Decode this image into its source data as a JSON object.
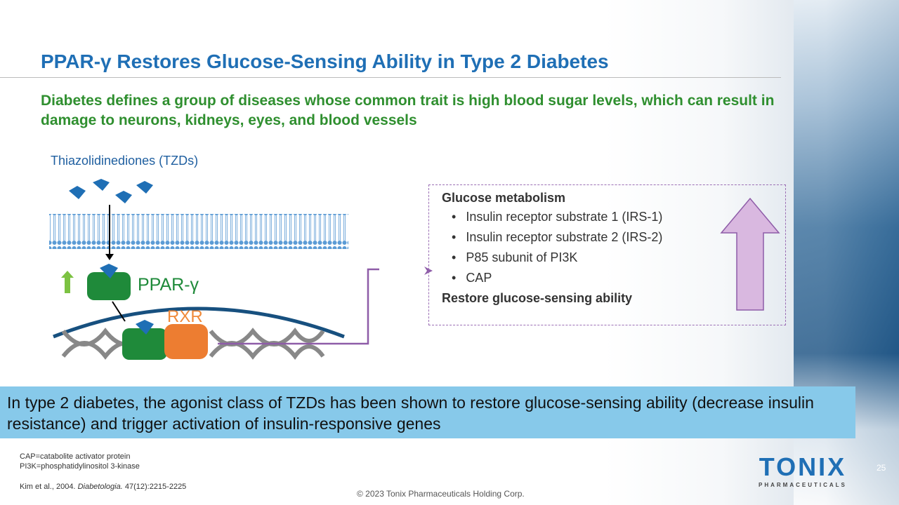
{
  "title": "PPAR-γ Restores Glucose-Sensing Ability in Type 2 Diabetes",
  "subtitle": "Diabetes defines a group of diseases whose common trait is high blood sugar levels, which can result in damage to neurons, kidneys, eyes, and blood vessels",
  "diagram": {
    "tzd_label": "Thiazolidinediones  (TZDs)",
    "ppar_label": "PPAR-γ",
    "rxr_label": "RXR"
  },
  "effects": {
    "heading": "Glucose metabolism",
    "items": [
      "Insulin receptor substrate 1 (IRS-1)",
      "Insulin receptor substrate 2 (IRS-2)",
      "P85 subunit of PI3K",
      "CAP"
    ],
    "footer": "Restore glucose-sensing ability"
  },
  "banner": "In type 2 diabetes, the agonist class of TZDs has been shown to restore glucose-sensing ability (decrease insulin resistance) and trigger activation of insulin-responsive genes",
  "footnotes": {
    "abbr1": "CAP=catabolite activator protein",
    "abbr2": "PI3K=phosphatidylinositol 3-kinase",
    "ref_authors": "Kim et al., 2004.",
    "ref_journal": "Diabetologia.",
    "ref_detail": "47(12):2215-2225"
  },
  "copyright": "© 2023 Tonix Pharmaceuticals Holding Corp.",
  "logo": {
    "name": "TONIX",
    "tagline": "PHARMACEUTICALS"
  },
  "page_number": "25"
}
